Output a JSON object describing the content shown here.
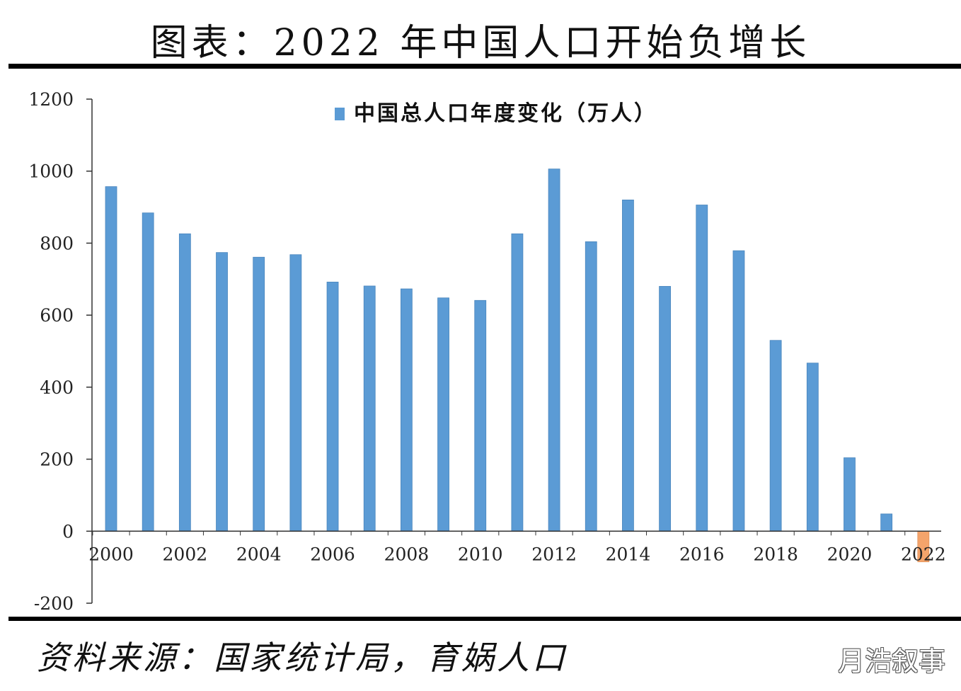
{
  "header": {
    "title": "图表：2022 年中国人口开始负增长"
  },
  "footer": {
    "source": "资料来源：国家统计局，育娲人口",
    "watermark": "月浩叙事"
  },
  "colors": {
    "positive": "#5b9bd5",
    "negative": "#f4a46b",
    "axis": "#333333"
  },
  "chart_data": {
    "type": "bar",
    "legend": {
      "label": "中国总人口年度变化（万人）",
      "position": "top-center"
    },
    "categories": [
      "2000",
      "2001",
      "2002",
      "2003",
      "2004",
      "2005",
      "2006",
      "2007",
      "2008",
      "2009",
      "2010",
      "2011",
      "2012",
      "2013",
      "2014",
      "2015",
      "2016",
      "2017",
      "2018",
      "2019",
      "2020",
      "2021",
      "2022"
    ],
    "xtick_labels": [
      "2000",
      "2002",
      "2004",
      "2006",
      "2008",
      "2010",
      "2012",
      "2014",
      "2016",
      "2018",
      "2020",
      "2022"
    ],
    "values": [
      957,
      884,
      826,
      774,
      761,
      768,
      692,
      681,
      673,
      648,
      641,
      826,
      1006,
      804,
      920,
      680,
      906,
      779,
      530,
      467,
      204,
      48,
      -85
    ],
    "yticks": [
      1200,
      1000,
      800,
      600,
      400,
      200,
      0,
      -200
    ],
    "ylim": [
      -200,
      1200
    ],
    "grid": false
  }
}
